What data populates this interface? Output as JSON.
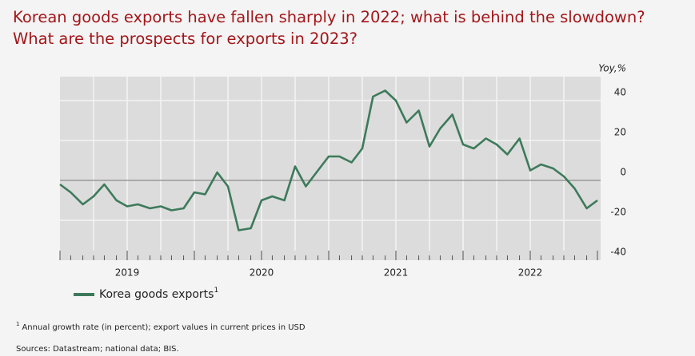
{
  "chart_data": {
    "type": "line",
    "title": [
      "Korean goods exports have fallen sharply in 2022; what is behind the slowdown?",
      "What are the prospects for exports in 2023?"
    ],
    "y_axis_label": "Yoy,%",
    "x": [
      2019.0,
      2019.08,
      2019.17,
      2019.25,
      2019.33,
      2019.42,
      2019.5,
      2019.58,
      2019.67,
      2019.75,
      2019.83,
      2019.92,
      2020.0,
      2020.08,
      2020.17,
      2020.25,
      2020.33,
      2020.42,
      2020.5,
      2020.58,
      2020.67,
      2020.75,
      2020.83,
      2020.92,
      2021.0,
      2021.08,
      2021.17,
      2021.25,
      2021.33,
      2021.42,
      2021.5,
      2021.58,
      2021.67,
      2021.75,
      2021.83,
      2021.92,
      2022.0,
      2022.08,
      2022.17,
      2022.25,
      2022.33,
      2022.42,
      2022.5,
      2022.58,
      2022.67,
      2022.75,
      2022.83,
      2022.92,
      2023.0
    ],
    "series": [
      {
        "name": "Korea goods exports",
        "color": "#3d7a5b",
        "values": [
          -2,
          -6,
          -12,
          -8,
          -2,
          -10,
          -13,
          -12,
          -14,
          -13,
          -15,
          -14,
          -6,
          -7,
          4,
          -3,
          -25,
          -24,
          -10,
          -8,
          -10,
          7,
          -3,
          5,
          12,
          12,
          9,
          16,
          42,
          45,
          40,
          29,
          35,
          17,
          26,
          33,
          18,
          16,
          21,
          18,
          13,
          21,
          5,
          8,
          6,
          2,
          -4,
          -14,
          -10
        ]
      }
    ],
    "legend_note": "1",
    "xlim": [
      2019,
      2023
    ],
    "xticks": [
      {
        "value": 2019.5,
        "label": "2019"
      },
      {
        "value": 2020.5,
        "label": "2020"
      },
      {
        "value": 2021.5,
        "label": "2021"
      },
      {
        "value": 2022.5,
        "label": "2022"
      }
    ],
    "ylim": [
      -40,
      52
    ],
    "yticks": [
      -40,
      -20,
      0,
      20,
      40
    ],
    "grid": true,
    "background": "#dcdcdc",
    "footnote": {
      "marker": "1",
      "text": "Annual growth rate (in percent); export values in current prices in USD"
    },
    "source": "Sources: Datastream; national data; BIS."
  }
}
